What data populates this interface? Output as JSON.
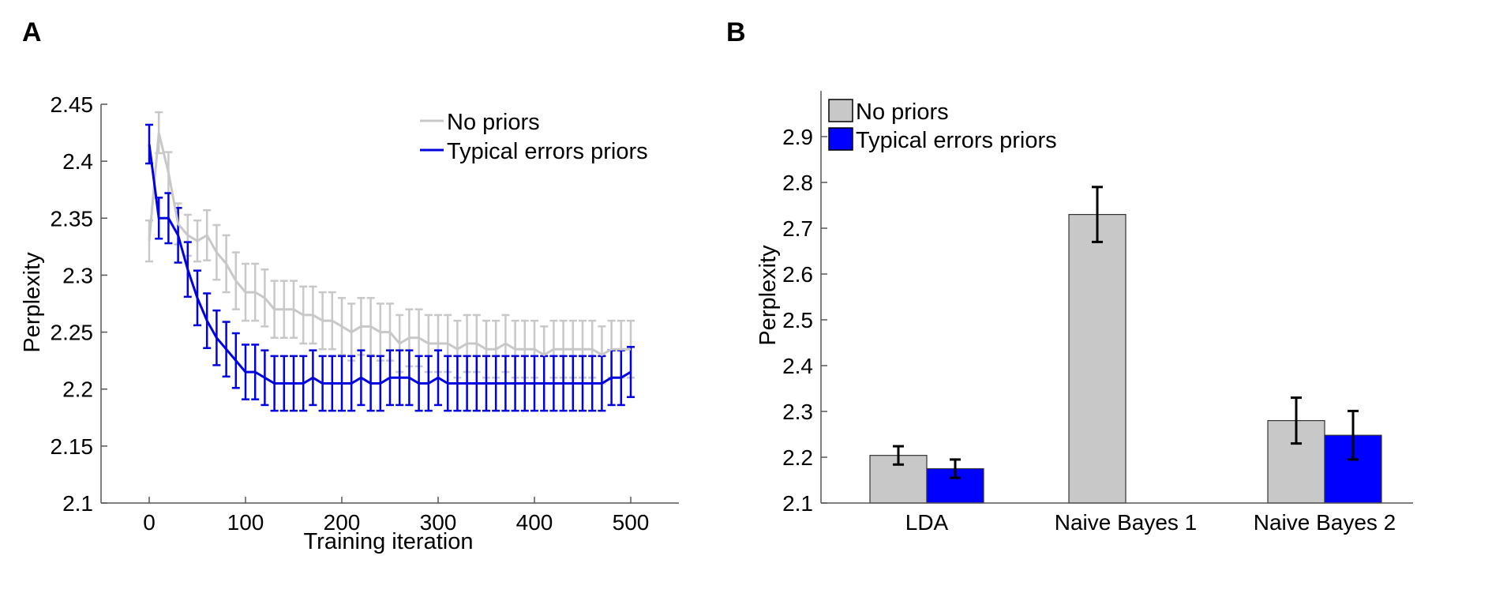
{
  "panels": [
    {
      "letter": "A"
    },
    {
      "letter": "B"
    }
  ],
  "colors": {
    "no_priors": "#c8c8c8",
    "typical_errors_priors": "#0000e0",
    "bar_no_priors": "#c8c8c8",
    "bar_typical": "#0000ff",
    "errorbar_B": "#000000"
  },
  "chart_data": [
    {
      "type": "line",
      "panel": "A",
      "title": "",
      "xlabel": "Training iteration",
      "ylabel": "Perplexity",
      "xlim": [
        -50,
        550
      ],
      "ylim": [
        2.1,
        2.45
      ],
      "xticks": [
        0,
        100,
        200,
        300,
        400,
        500
      ],
      "yticks": [
        2.1,
        2.15,
        2.2,
        2.25,
        2.3,
        2.35,
        2.4,
        2.45
      ],
      "ytick_labels": [
        "2.1",
        "2.15",
        "2.2",
        "2.25",
        "2.3",
        "2.35",
        "2.4",
        "2.45"
      ],
      "grid": false,
      "legend_position": "top-right",
      "x": [
        0,
        10,
        20,
        30,
        40,
        50,
        60,
        70,
        80,
        90,
        100,
        110,
        120,
        130,
        140,
        150,
        160,
        170,
        180,
        190,
        200,
        210,
        220,
        230,
        240,
        250,
        260,
        270,
        280,
        290,
        300,
        310,
        320,
        330,
        340,
        350,
        360,
        370,
        380,
        390,
        400,
        410,
        420,
        430,
        440,
        450,
        460,
        470,
        480,
        490,
        500
      ],
      "series": [
        {
          "name": "No priors",
          "values": [
            2.33,
            2.425,
            2.39,
            2.345,
            2.335,
            2.33,
            2.335,
            2.32,
            2.31,
            2.295,
            2.285,
            2.285,
            2.28,
            2.27,
            2.27,
            2.27,
            2.265,
            2.265,
            2.26,
            2.26,
            2.255,
            2.25,
            2.255,
            2.255,
            2.25,
            2.25,
            2.24,
            2.245,
            2.245,
            2.24,
            2.24,
            2.24,
            2.235,
            2.24,
            2.24,
            2.235,
            2.235,
            2.24,
            2.235,
            2.235,
            2.235,
            2.23,
            2.235,
            2.235,
            2.235,
            2.235,
            2.235,
            2.23,
            2.235,
            2.235,
            2.235
          ],
          "error": [
            0.018,
            0.018,
            0.018,
            0.018,
            0.018,
            0.018,
            0.022,
            0.024,
            0.025,
            0.025,
            0.025,
            0.025,
            0.025,
            0.025,
            0.025,
            0.025,
            0.025,
            0.025,
            0.025,
            0.025,
            0.025,
            0.025,
            0.025,
            0.025,
            0.025,
            0.025,
            0.025,
            0.025,
            0.025,
            0.025,
            0.025,
            0.025,
            0.025,
            0.025,
            0.025,
            0.025,
            0.025,
            0.025,
            0.025,
            0.025,
            0.025,
            0.025,
            0.025,
            0.025,
            0.025,
            0.025,
            0.025,
            0.025,
            0.025,
            0.025,
            0.025
          ]
        },
        {
          "name": "Typical errors priors",
          "values": [
            2.415,
            2.35,
            2.35,
            2.335,
            2.305,
            2.28,
            2.26,
            2.245,
            2.235,
            2.225,
            2.215,
            2.215,
            2.21,
            2.205,
            2.205,
            2.205,
            2.205,
            2.21,
            2.205,
            2.205,
            2.205,
            2.205,
            2.21,
            2.205,
            2.205,
            2.21,
            2.21,
            2.21,
            2.205,
            2.205,
            2.21,
            2.205,
            2.205,
            2.205,
            2.205,
            2.205,
            2.205,
            2.205,
            2.205,
            2.205,
            2.205,
            2.205,
            2.205,
            2.205,
            2.205,
            2.205,
            2.205,
            2.205,
            2.21,
            2.21,
            2.215
          ],
          "error": [
            0.017,
            0.018,
            0.022,
            0.024,
            0.024,
            0.024,
            0.024,
            0.024,
            0.024,
            0.024,
            0.024,
            0.024,
            0.024,
            0.024,
            0.024,
            0.024,
            0.024,
            0.024,
            0.024,
            0.024,
            0.024,
            0.024,
            0.024,
            0.024,
            0.024,
            0.024,
            0.024,
            0.024,
            0.024,
            0.024,
            0.024,
            0.024,
            0.024,
            0.024,
            0.024,
            0.024,
            0.024,
            0.024,
            0.024,
            0.024,
            0.024,
            0.024,
            0.024,
            0.024,
            0.024,
            0.024,
            0.024,
            0.024,
            0.024,
            0.024,
            0.022
          ]
        }
      ]
    },
    {
      "type": "bar",
      "panel": "B",
      "title": "",
      "xlabel": "",
      "ylabel": "Perplexity",
      "ylim": [
        2.1,
        3.0
      ],
      "yticks": [
        2.1,
        2.2,
        2.3,
        2.4,
        2.5,
        2.6,
        2.7,
        2.8,
        2.9
      ],
      "ytick_labels": [
        "2.1",
        "2.2",
        "2.3",
        "2.4",
        "2.5",
        "2.6",
        "2.7",
        "2.8",
        "2.9"
      ],
      "grid": false,
      "legend_position": "top-left",
      "categories": [
        "LDA",
        "Naive Bayes 1",
        "Naive Bayes 2"
      ],
      "series": [
        {
          "name": "No priors",
          "values": [
            2.204,
            2.73,
            2.28
          ],
          "error": [
            0.02,
            0.06,
            0.05
          ]
        },
        {
          "name": "Typical errors priors",
          "values": [
            2.175,
            null,
            2.248
          ],
          "error": [
            0.02,
            null,
            0.053
          ]
        }
      ]
    }
  ]
}
